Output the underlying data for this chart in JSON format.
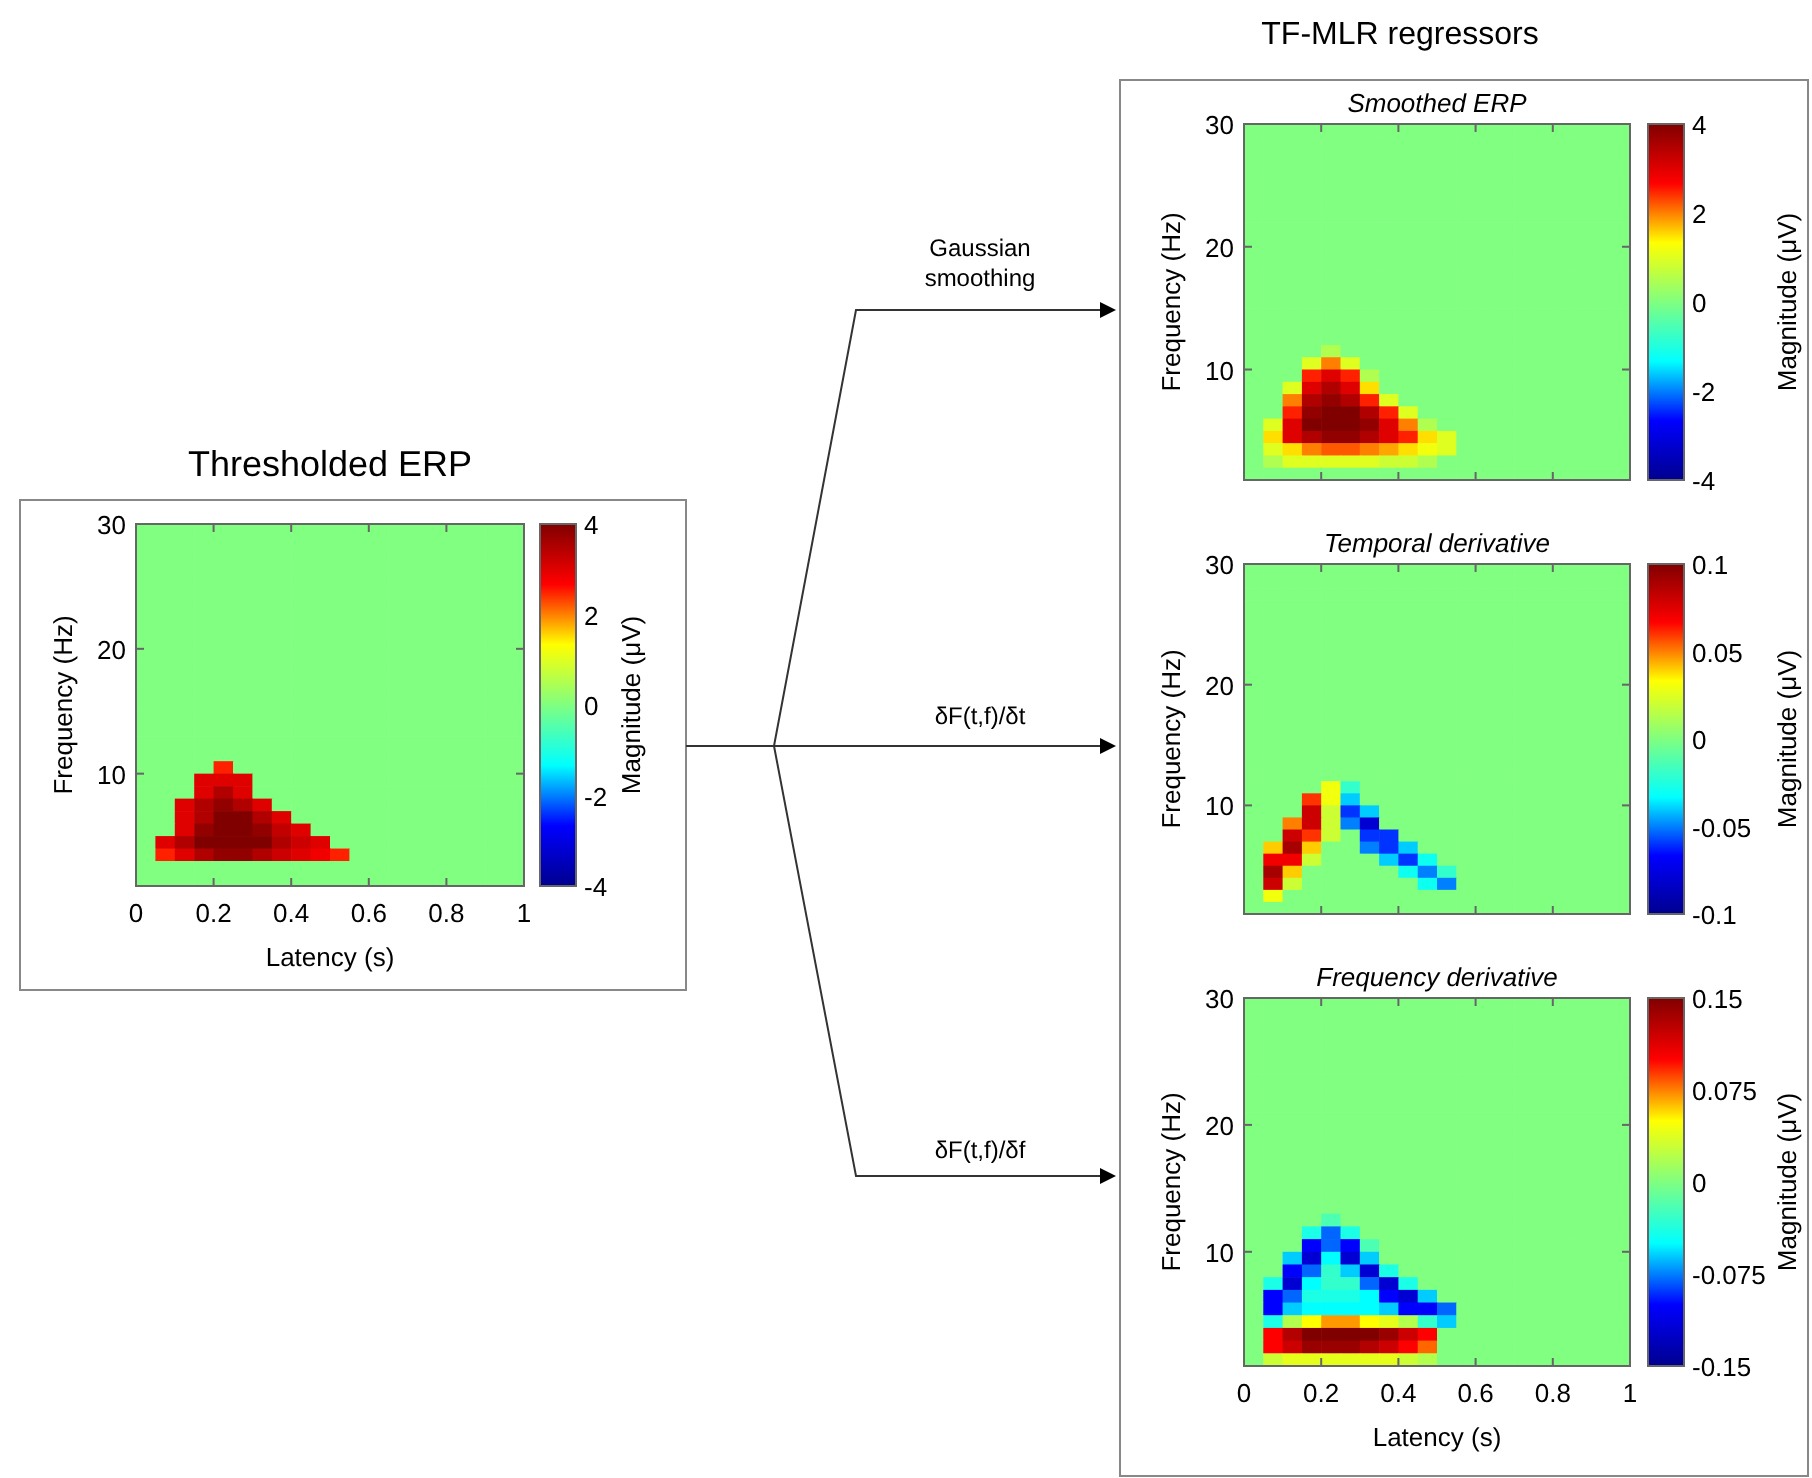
{
  "chart_data": [
    {
      "type": "heatmap",
      "title": "Thresholded ERP",
      "xlabel": "Latency (s)",
      "ylabel": "Frequency (Hz)",
      "clabel": "Magnitude (μV)",
      "xlim": [
        0,
        1
      ],
      "xticks": [
        0,
        0.2,
        0.4,
        0.6,
        0.8,
        1
      ],
      "ylim": [
        1,
        30
      ],
      "yticks": [
        10,
        20,
        30
      ],
      "clim": [
        -4,
        4
      ],
      "cticks": [
        -4,
        -2,
        0,
        2,
        4
      ],
      "cells": [
        [
          0,
          0,
          0,
          0,
          0,
          0,
          0,
          0,
          0,
          0,
          0,
          0,
          0,
          0,
          0,
          0,
          0,
          0,
          0,
          0
        ],
        [
          0,
          0,
          0,
          0,
          0,
          0,
          0,
          0,
          0,
          0,
          0,
          0,
          0,
          0,
          0,
          0,
          0,
          0,
          0,
          0
        ],
        [
          0,
          0,
          0,
          0,
          0,
          0,
          0,
          0,
          0,
          0,
          0,
          0,
          0,
          0,
          0,
          0,
          0,
          0,
          0,
          0
        ],
        [
          0,
          0,
          0,
          0,
          0,
          0,
          0,
          0,
          0,
          0,
          0,
          0,
          0,
          0,
          0,
          0,
          0,
          0,
          0,
          0
        ],
        [
          0,
          0,
          0,
          0,
          0,
          0,
          0,
          0,
          0,
          0,
          0,
          0,
          0,
          0,
          0,
          0,
          0,
          0,
          0,
          0
        ],
        [
          0,
          0,
          0,
          0,
          0,
          0,
          0,
          0,
          0,
          0,
          0,
          0,
          0,
          0,
          0,
          0,
          0,
          0,
          0,
          0
        ],
        [
          0,
          0,
          0,
          0,
          0,
          0,
          0,
          0,
          0,
          0,
          0,
          0,
          0,
          0,
          0,
          0,
          0,
          0,
          0,
          0
        ],
        [
          0,
          0,
          0,
          0,
          0,
          0,
          0,
          0,
          0,
          0,
          0,
          0,
          0,
          0,
          0,
          0,
          0,
          0,
          0,
          0
        ],
        [
          0,
          0,
          0,
          0,
          0,
          0,
          0,
          0,
          0,
          0,
          0,
          0,
          0,
          0,
          0,
          0,
          0,
          0,
          0,
          0
        ],
        [
          0,
          0,
          0,
          0,
          0,
          0,
          0,
          0,
          0,
          0,
          0,
          0,
          0,
          0,
          0,
          0,
          0,
          0,
          0,
          0
        ],
        [
          0,
          0,
          0,
          0,
          0,
          0,
          0,
          0,
          0,
          0,
          0,
          0,
          0,
          0,
          0,
          0,
          0,
          0,
          0,
          0
        ],
        [
          0,
          0,
          0,
          0,
          0,
          0,
          0,
          0,
          0,
          0,
          0,
          0,
          0,
          0,
          0,
          0,
          0,
          0,
          0,
          0
        ],
        [
          0,
          0,
          0,
          0,
          0,
          0,
          0,
          0,
          0,
          0,
          0,
          0,
          0,
          0,
          0,
          0,
          0,
          0,
          0,
          0
        ],
        [
          0,
          0,
          0,
          0,
          0,
          0,
          0,
          0,
          0,
          0,
          0,
          0,
          0,
          0,
          0,
          0,
          0,
          0,
          0,
          0
        ],
        [
          0,
          0,
          0,
          0,
          0,
          0,
          0,
          0,
          0,
          0,
          0,
          0,
          0,
          0,
          0,
          0,
          0,
          0,
          0,
          0
        ],
        [
          0,
          0,
          0,
          0,
          0,
          0,
          0,
          0,
          0,
          0,
          0,
          0,
          0,
          0,
          0,
          0,
          0,
          0,
          0,
          0
        ],
        [
          0,
          0,
          0,
          0,
          0,
          0,
          0,
          0,
          0,
          0,
          0,
          0,
          0,
          0,
          0,
          0,
          0,
          0,
          0,
          0
        ],
        [
          0,
          0,
          0,
          0,
          0,
          0,
          0,
          0,
          0,
          0,
          0,
          0,
          0,
          0,
          0,
          0,
          0,
          0,
          0,
          0
        ],
        [
          0,
          0,
          0,
          0,
          0,
          0,
          0,
          0,
          0,
          0,
          0,
          0,
          0,
          0,
          0,
          0,
          0,
          0,
          0,
          0
        ],
        [
          0,
          0,
          0,
          0,
          2.5,
          0,
          0,
          0,
          0,
          0,
          0,
          0,
          0,
          0,
          0,
          0,
          0,
          0,
          0,
          0
        ],
        [
          0,
          0,
          0,
          3,
          3,
          3,
          0,
          0,
          0,
          0,
          0,
          0,
          0,
          0,
          0,
          0,
          0,
          0,
          0,
          0
        ],
        [
          0,
          0,
          0,
          3,
          3.5,
          3,
          0,
          0,
          0,
          0,
          0,
          0,
          0,
          0,
          0,
          0,
          0,
          0,
          0,
          0
        ],
        [
          0,
          0,
          3,
          3.5,
          3.8,
          3.5,
          3,
          0,
          0,
          0,
          0,
          0,
          0,
          0,
          0,
          0,
          0,
          0,
          0,
          0
        ],
        [
          0,
          0,
          3,
          3.5,
          4,
          4,
          3.5,
          3,
          0,
          0,
          0,
          0,
          0,
          0,
          0,
          0,
          0,
          0,
          0,
          0
        ],
        [
          0,
          0,
          3,
          3.8,
          4,
          4,
          3.8,
          3.3,
          3,
          0,
          0,
          0,
          0,
          0,
          0,
          0,
          0,
          0,
          0,
          0
        ],
        [
          0,
          3,
          3.5,
          4,
          4,
          4,
          4,
          3.5,
          3.2,
          3,
          0,
          0,
          0,
          0,
          0,
          0,
          0,
          0,
          0,
          0
        ],
        [
          0,
          2.5,
          3,
          3.5,
          3.8,
          3.8,
          3.5,
          3.2,
          3,
          2.8,
          2.5,
          0,
          0,
          0,
          0,
          0,
          0,
          0,
          0,
          0
        ],
        [
          0,
          0,
          0,
          0,
          0,
          0,
          0,
          0,
          0,
          0,
          0,
          0,
          0,
          0,
          0,
          0,
          0,
          0,
          0,
          0
        ],
        [
          0,
          0,
          0,
          0,
          0,
          0,
          0,
          0,
          0,
          0,
          0,
          0,
          0,
          0,
          0,
          0,
          0,
          0,
          0,
          0
        ]
      ]
    },
    {
      "type": "heatmap",
      "title": "Smoothed ERP",
      "ylabel": "Frequency (Hz)",
      "clabel": "Magnitude (μV)",
      "tick_labels": "y",
      "xlim": [
        0,
        1
      ],
      "xticks": [
        0,
        0.2,
        0.4,
        0.6,
        0.8,
        1
      ],
      "ylim": [
        1,
        30
      ],
      "yticks": [
        10,
        20,
        30
      ],
      "clim": [
        -4,
        4
      ],
      "cticks": [
        -4,
        -2,
        0,
        2,
        4
      ],
      "cells": [
        [
          0,
          0,
          0,
          0,
          0,
          0,
          0,
          0,
          0,
          0,
          0,
          0,
          0,
          0,
          0,
          0,
          0,
          0,
          0,
          0
        ],
        [
          0,
          0,
          0,
          0,
          0,
          0,
          0,
          0,
          0,
          0,
          0,
          0,
          0,
          0,
          0,
          0,
          0,
          0,
          0,
          0
        ],
        [
          0,
          0,
          0,
          0,
          0,
          0,
          0,
          0,
          0,
          0,
          0,
          0,
          0,
          0,
          0,
          0,
          0,
          0,
          0,
          0
        ],
        [
          0,
          0,
          0,
          0,
          0,
          0,
          0,
          0,
          0,
          0,
          0,
          0,
          0,
          0,
          0,
          0,
          0,
          0,
          0,
          0
        ],
        [
          0,
          0,
          0,
          0,
          0,
          0,
          0,
          0,
          0,
          0,
          0,
          0,
          0,
          0,
          0,
          0,
          0,
          0,
          0,
          0
        ],
        [
          0,
          0,
          0,
          0,
          0,
          0,
          0,
          0,
          0,
          0,
          0,
          0,
          0,
          0,
          0,
          0,
          0,
          0,
          0,
          0
        ],
        [
          0,
          0,
          0,
          0,
          0,
          0,
          0,
          0,
          0,
          0,
          0,
          0,
          0,
          0,
          0,
          0,
          0,
          0,
          0,
          0
        ],
        [
          0,
          0,
          0,
          0,
          0,
          0,
          0,
          0,
          0,
          0,
          0,
          0,
          0,
          0,
          0,
          0,
          0,
          0,
          0,
          0
        ],
        [
          0,
          0,
          0,
          0,
          0,
          0,
          0,
          0,
          0,
          0,
          0,
          0,
          0,
          0,
          0,
          0,
          0,
          0,
          0,
          0
        ],
        [
          0,
          0,
          0,
          0,
          0,
          0,
          0,
          0,
          0,
          0,
          0,
          0,
          0,
          0,
          0,
          0,
          0,
          0,
          0,
          0
        ],
        [
          0,
          0,
          0,
          0,
          0,
          0,
          0,
          0,
          0,
          0,
          0,
          0,
          0,
          0,
          0,
          0,
          0,
          0,
          0,
          0
        ],
        [
          0,
          0,
          0,
          0,
          0,
          0,
          0,
          0,
          0,
          0,
          0,
          0,
          0,
          0,
          0,
          0,
          0,
          0,
          0,
          0
        ],
        [
          0,
          0,
          0,
          0,
          0,
          0,
          0,
          0,
          0,
          0,
          0,
          0,
          0,
          0,
          0,
          0,
          0,
          0,
          0,
          0
        ],
        [
          0,
          0,
          0,
          0,
          0,
          0,
          0,
          0,
          0,
          0,
          0,
          0,
          0,
          0,
          0,
          0,
          0,
          0,
          0,
          0
        ],
        [
          0,
          0,
          0,
          0,
          0,
          0,
          0,
          0,
          0,
          0,
          0,
          0,
          0,
          0,
          0,
          0,
          0,
          0,
          0,
          0
        ],
        [
          0,
          0,
          0,
          0,
          0,
          0,
          0,
          0,
          0,
          0,
          0,
          0,
          0,
          0,
          0,
          0,
          0,
          0,
          0,
          0
        ],
        [
          0,
          0,
          0,
          0,
          0,
          0,
          0,
          0,
          0,
          0,
          0,
          0,
          0,
          0,
          0,
          0,
          0,
          0,
          0,
          0
        ],
        [
          0,
          0,
          0,
          0,
          0,
          0,
          0,
          0,
          0,
          0,
          0,
          0,
          0,
          0,
          0,
          0,
          0,
          0,
          0,
          0
        ],
        [
          0,
          0,
          0,
          0,
          0.5,
          0,
          0,
          0,
          0,
          0,
          0,
          0,
          0,
          0,
          0,
          0,
          0,
          0,
          0,
          0
        ],
        [
          0,
          0,
          0,
          1,
          2,
          1,
          0,
          0,
          0,
          0,
          0,
          0,
          0,
          0,
          0,
          0,
          0,
          0,
          0,
          0
        ],
        [
          0,
          0,
          0,
          2.5,
          3,
          2.5,
          0.5,
          0,
          0,
          0,
          0,
          0,
          0,
          0,
          0,
          0,
          0,
          0,
          0,
          0
        ],
        [
          0,
          0,
          1,
          3,
          3.5,
          3,
          1.5,
          0,
          0,
          0,
          0,
          0,
          0,
          0,
          0,
          0,
          0,
          0,
          0,
          0
        ],
        [
          0,
          0,
          2,
          3.5,
          3.8,
          3.5,
          2.5,
          1,
          0,
          0,
          0,
          0,
          0,
          0,
          0,
          0,
          0,
          0,
          0,
          0
        ],
        [
          0,
          0,
          2.5,
          3.8,
          4,
          4,
          3.5,
          2.5,
          1,
          0,
          0,
          0,
          0,
          0,
          0,
          0,
          0,
          0,
          0,
          0
        ],
        [
          0,
          1,
          3,
          4,
          4,
          4,
          3.8,
          3,
          2,
          0.5,
          0,
          0,
          0,
          0,
          0,
          0,
          0,
          0,
          0,
          0
        ],
        [
          0,
          1.5,
          3,
          3.5,
          3.8,
          3.8,
          3.5,
          3,
          2.5,
          1.5,
          1,
          0,
          0,
          0,
          0,
          0,
          0,
          0,
          0,
          0
        ],
        [
          0,
          1,
          1.5,
          2,
          2.2,
          2.2,
          2,
          1.8,
          1.5,
          1.2,
          1,
          0,
          0,
          0,
          0,
          0,
          0,
          0,
          0,
          0
        ],
        [
          0,
          0.5,
          1,
          1,
          1,
          1,
          1,
          0.8,
          0.8,
          0.5,
          0,
          0,
          0,
          0,
          0,
          0,
          0,
          0,
          0,
          0
        ],
        [
          0,
          0,
          0,
          0,
          0,
          0,
          0,
          0,
          0,
          0,
          0,
          0,
          0,
          0,
          0,
          0,
          0,
          0,
          0,
          0
        ]
      ]
    },
    {
      "type": "heatmap",
      "title": "Temporal derivative",
      "ylabel": "Frequency (Hz)",
      "clabel": "Magnitude (μV)",
      "tick_labels": "y",
      "xlim": [
        0,
        1
      ],
      "xticks": [
        0,
        0.2,
        0.4,
        0.6,
        0.8,
        1
      ],
      "ylim": [
        1,
        30
      ],
      "yticks": [
        10,
        20,
        30
      ],
      "clim": [
        -0.1,
        0.1
      ],
      "cticks": [
        -0.1,
        -0.05,
        0,
        0.05,
        0.1
      ],
      "cells": [
        [
          0,
          0,
          0,
          0,
          0,
          0,
          0,
          0,
          0,
          0,
          0,
          0,
          0,
          0,
          0,
          0,
          0,
          0,
          0,
          0
        ],
        [
          0,
          0,
          0,
          0,
          0,
          0,
          0,
          0,
          0,
          0,
          0,
          0,
          0,
          0,
          0,
          0,
          0,
          0,
          0,
          0
        ],
        [
          0,
          0,
          0,
          0,
          0,
          0,
          0,
          0,
          0,
          0,
          0,
          0,
          0,
          0,
          0,
          0,
          0,
          0,
          0,
          0
        ],
        [
          0,
          0,
          0,
          0,
          0,
          0,
          0,
          0,
          0,
          0,
          0,
          0,
          0,
          0,
          0,
          0,
          0,
          0,
          0,
          0
        ],
        [
          0,
          0,
          0,
          0,
          0,
          0,
          0,
          0,
          0,
          0,
          0,
          0,
          0,
          0,
          0,
          0,
          0,
          0,
          0,
          0
        ],
        [
          0,
          0,
          0,
          0,
          0,
          0,
          0,
          0,
          0,
          0,
          0,
          0,
          0,
          0,
          0,
          0,
          0,
          0,
          0,
          0
        ],
        [
          0,
          0,
          0,
          0,
          0,
          0,
          0,
          0,
          0,
          0,
          0,
          0,
          0,
          0,
          0,
          0,
          0,
          0,
          0,
          0
        ],
        [
          0,
          0,
          0,
          0,
          0,
          0,
          0,
          0,
          0,
          0,
          0,
          0,
          0,
          0,
          0,
          0,
          0,
          0,
          0,
          0
        ],
        [
          0,
          0,
          0,
          0,
          0,
          0,
          0,
          0,
          0,
          0,
          0,
          0,
          0,
          0,
          0,
          0,
          0,
          0,
          0,
          0
        ],
        [
          0,
          0,
          0,
          0,
          0,
          0,
          0,
          0,
          0,
          0,
          0,
          0,
          0,
          0,
          0,
          0,
          0,
          0,
          0,
          0
        ],
        [
          0,
          0,
          0,
          0,
          0,
          0,
          0,
          0,
          0,
          0,
          0,
          0,
          0,
          0,
          0,
          0,
          0,
          0,
          0,
          0
        ],
        [
          0,
          0,
          0,
          0,
          0,
          0,
          0,
          0,
          0,
          0,
          0,
          0,
          0,
          0,
          0,
          0,
          0,
          0,
          0,
          0
        ],
        [
          0,
          0,
          0,
          0,
          0,
          0,
          0,
          0,
          0,
          0,
          0,
          0,
          0,
          0,
          0,
          0,
          0,
          0,
          0,
          0
        ],
        [
          0,
          0,
          0,
          0,
          0,
          0,
          0,
          0,
          0,
          0,
          0,
          0,
          0,
          0,
          0,
          0,
          0,
          0,
          0,
          0
        ],
        [
          0,
          0,
          0,
          0,
          0,
          0,
          0,
          0,
          0,
          0,
          0,
          0,
          0,
          0,
          0,
          0,
          0,
          0,
          0,
          0
        ],
        [
          0,
          0,
          0,
          0,
          0,
          0,
          0,
          0,
          0,
          0,
          0,
          0,
          0,
          0,
          0,
          0,
          0,
          0,
          0,
          0
        ],
        [
          0,
          0,
          0,
          0,
          0,
          0,
          0,
          0,
          0,
          0,
          0,
          0,
          0,
          0,
          0,
          0,
          0,
          0,
          0,
          0
        ],
        [
          0,
          0,
          0,
          0,
          0,
          0,
          0,
          0,
          0,
          0,
          0,
          0,
          0,
          0,
          0,
          0,
          0,
          0,
          0,
          0
        ],
        [
          0,
          0,
          0,
          0,
          0.03,
          -0.02,
          0,
          0,
          0,
          0,
          0,
          0,
          0,
          0,
          0,
          0,
          0,
          0,
          0,
          0
        ],
        [
          0,
          0,
          0,
          0.06,
          0.03,
          -0.04,
          0,
          0,
          0,
          0,
          0,
          0,
          0,
          0,
          0,
          0,
          0,
          0,
          0,
          0
        ],
        [
          0,
          0,
          0,
          0.08,
          0.02,
          -0.06,
          -0.04,
          0,
          0,
          0,
          0,
          0,
          0,
          0,
          0,
          0,
          0,
          0,
          0,
          0
        ],
        [
          0,
          0,
          0.05,
          0.08,
          0.02,
          -0.05,
          -0.08,
          0,
          0,
          0,
          0,
          0,
          0,
          0,
          0,
          0,
          0,
          0,
          0,
          0
        ],
        [
          0,
          0,
          0.08,
          0.06,
          0.02,
          0,
          -0.06,
          -0.06,
          0,
          0,
          0,
          0,
          0,
          0,
          0,
          0,
          0,
          0,
          0,
          0
        ],
        [
          0,
          0.04,
          0.09,
          0.04,
          0,
          0,
          -0.05,
          -0.06,
          -0.04,
          0,
          0,
          0,
          0,
          0,
          0,
          0,
          0,
          0,
          0,
          0
        ],
        [
          0,
          0.07,
          0.07,
          0.02,
          0,
          0,
          0,
          -0.04,
          -0.06,
          -0.03,
          0,
          0,
          0,
          0,
          0,
          0,
          0,
          0,
          0,
          0
        ],
        [
          0,
          0.09,
          0.04,
          0,
          0,
          0,
          0,
          0,
          -0.03,
          -0.05,
          -0.02,
          0,
          0,
          0,
          0,
          0,
          0,
          0,
          0,
          0
        ],
        [
          0,
          0.08,
          0.02,
          0,
          0,
          0,
          0,
          0,
          0,
          -0.03,
          -0.05,
          0,
          0,
          0,
          0,
          0,
          0,
          0,
          0,
          0
        ],
        [
          0,
          0.03,
          0,
          0,
          0,
          0,
          0,
          0,
          0,
          0,
          0,
          0,
          0,
          0,
          0,
          0,
          0,
          0,
          0,
          0
        ],
        [
          0,
          0,
          0,
          0,
          0,
          0,
          0,
          0,
          0,
          0,
          0,
          0,
          0,
          0,
          0,
          0,
          0,
          0,
          0,
          0
        ]
      ]
    },
    {
      "type": "heatmap",
      "title": "Frequency derivative",
      "xlabel": "Latency (s)",
      "ylabel": "Frequency (Hz)",
      "clabel": "Magnitude (μV)",
      "xlim": [
        0,
        1
      ],
      "xticks": [
        0,
        0.2,
        0.4,
        0.6,
        0.8,
        1
      ],
      "ylim": [
        1,
        30
      ],
      "yticks": [
        10,
        20,
        30
      ],
      "clim": [
        -0.15,
        0.15
      ],
      "cticks": [
        -0.15,
        -0.075,
        0,
        0.075,
        0.15
      ],
      "cells": [
        [
          0,
          0,
          0,
          0,
          0,
          0,
          0,
          0,
          0,
          0,
          0,
          0,
          0,
          0,
          0,
          0,
          0,
          0,
          0,
          0
        ],
        [
          0,
          0,
          0,
          0,
          0,
          0,
          0,
          0,
          0,
          0,
          0,
          0,
          0,
          0,
          0,
          0,
          0,
          0,
          0,
          0
        ],
        [
          0,
          0,
          0,
          0,
          0,
          0,
          0,
          0,
          0,
          0,
          0,
          0,
          0,
          0,
          0,
          0,
          0,
          0,
          0,
          0
        ],
        [
          0,
          0,
          0,
          0,
          0,
          0,
          0,
          0,
          0,
          0,
          0,
          0,
          0,
          0,
          0,
          0,
          0,
          0,
          0,
          0
        ],
        [
          0,
          0,
          0,
          0,
          0,
          0,
          0,
          0,
          0,
          0,
          0,
          0,
          0,
          0,
          0,
          0,
          0,
          0,
          0,
          0
        ],
        [
          0,
          0,
          0,
          0,
          0,
          0,
          0,
          0,
          0,
          0,
          0,
          0,
          0,
          0,
          0,
          0,
          0,
          0,
          0,
          0
        ],
        [
          0,
          0,
          0,
          0,
          0,
          0,
          0,
          0,
          0,
          0,
          0,
          0,
          0,
          0,
          0,
          0,
          0,
          0,
          0,
          0
        ],
        [
          0,
          0,
          0,
          0,
          0,
          0,
          0,
          0,
          0,
          0,
          0,
          0,
          0,
          0,
          0,
          0,
          0,
          0,
          0,
          0
        ],
        [
          0,
          0,
          0,
          0,
          0,
          0,
          0,
          0,
          0,
          0,
          0,
          0,
          0,
          0,
          0,
          0,
          0,
          0,
          0,
          0
        ],
        [
          0,
          0,
          0,
          0,
          0,
          0,
          0,
          0,
          0,
          0,
          0,
          0,
          0,
          0,
          0,
          0,
          0,
          0,
          0,
          0
        ],
        [
          0,
          0,
          0,
          0,
          0,
          0,
          0,
          0,
          0,
          0,
          0,
          0,
          0,
          0,
          0,
          0,
          0,
          0,
          0,
          0
        ],
        [
          0,
          0,
          0,
          0,
          0,
          0,
          0,
          0,
          0,
          0,
          0,
          0,
          0,
          0,
          0,
          0,
          0,
          0,
          0,
          0
        ],
        [
          0,
          0,
          0,
          0,
          0,
          0,
          0,
          0,
          0,
          0,
          0,
          0,
          0,
          0,
          0,
          0,
          0,
          0,
          0,
          0
        ],
        [
          0,
          0,
          0,
          0,
          0,
          0,
          0,
          0,
          0,
          0,
          0,
          0,
          0,
          0,
          0,
          0,
          0,
          0,
          0,
          0
        ],
        [
          0,
          0,
          0,
          0,
          0,
          0,
          0,
          0,
          0,
          0,
          0,
          0,
          0,
          0,
          0,
          0,
          0,
          0,
          0,
          0
        ],
        [
          0,
          0,
          0,
          0,
          0,
          0,
          0,
          0,
          0,
          0,
          0,
          0,
          0,
          0,
          0,
          0,
          0,
          0,
          0,
          0
        ],
        [
          0,
          0,
          0,
          0,
          0,
          0,
          0,
          0,
          0,
          0,
          0,
          0,
          0,
          0,
          0,
          0,
          0,
          0,
          0,
          0
        ],
        [
          0,
          0,
          0,
          0,
          -0.02,
          0,
          0,
          0,
          0,
          0,
          0,
          0,
          0,
          0,
          0,
          0,
          0,
          0,
          0,
          0
        ],
        [
          0,
          0,
          0,
          -0.04,
          -0.08,
          -0.04,
          0,
          0,
          0,
          0,
          0,
          0,
          0,
          0,
          0,
          0,
          0,
          0,
          0,
          0
        ],
        [
          0,
          0,
          0,
          -0.1,
          -0.08,
          -0.1,
          -0.02,
          0,
          0,
          0,
          0,
          0,
          0,
          0,
          0,
          0,
          0,
          0,
          0,
          0
        ],
        [
          0,
          0,
          -0.06,
          -0.12,
          -0.05,
          -0.12,
          -0.06,
          0,
          0,
          0,
          0,
          0,
          0,
          0,
          0,
          0,
          0,
          0,
          0,
          0
        ],
        [
          0,
          0,
          -0.1,
          -0.08,
          -0.03,
          -0.06,
          -0.12,
          -0.04,
          0,
          0,
          0,
          0,
          0,
          0,
          0,
          0,
          0,
          0,
          0,
          0
        ],
        [
          0,
          -0.04,
          -0.12,
          -0.05,
          -0.03,
          -0.03,
          -0.08,
          -0.12,
          -0.04,
          0,
          0,
          0,
          0,
          0,
          0,
          0,
          0,
          0,
          0,
          0
        ],
        [
          0,
          -0.1,
          -0.08,
          -0.04,
          -0.04,
          -0.04,
          -0.05,
          -0.1,
          -0.12,
          -0.06,
          0,
          0,
          0,
          0,
          0,
          0,
          0,
          0,
          0,
          0
        ],
        [
          0,
          -0.1,
          -0.06,
          -0.05,
          -0.05,
          -0.05,
          -0.05,
          -0.06,
          -0.1,
          -0.1,
          -0.08,
          0,
          0,
          0,
          0,
          0,
          0,
          0,
          0,
          0
        ],
        [
          0,
          -0.04,
          0.02,
          0.05,
          0.07,
          0.07,
          0.05,
          0.04,
          0.02,
          -0.03,
          -0.06,
          0,
          0,
          0,
          0,
          0,
          0,
          0,
          0,
          0
        ],
        [
          0,
          0.1,
          0.13,
          0.15,
          0.15,
          0.15,
          0.15,
          0.14,
          0.12,
          0.1,
          0,
          0,
          0,
          0,
          0,
          0,
          0,
          0,
          0,
          0
        ],
        [
          0,
          0.1,
          0.12,
          0.14,
          0.14,
          0.14,
          0.13,
          0.12,
          0.1,
          0.08,
          0,
          0,
          0,
          0,
          0,
          0,
          0,
          0,
          0,
          0
        ],
        [
          0,
          0.03,
          0.04,
          0.04,
          0.04,
          0.04,
          0.04,
          0.04,
          0.03,
          0.02,
          0,
          0,
          0,
          0,
          0,
          0,
          0,
          0,
          0,
          0
        ]
      ]
    },
    {
      "type": "other",
      "annotations": [
        "TF-MLR regressors",
        "Gaussian smoothing",
        "δF(t,f)/δt",
        "δF(t,f)/δf"
      ]
    }
  ]
}
